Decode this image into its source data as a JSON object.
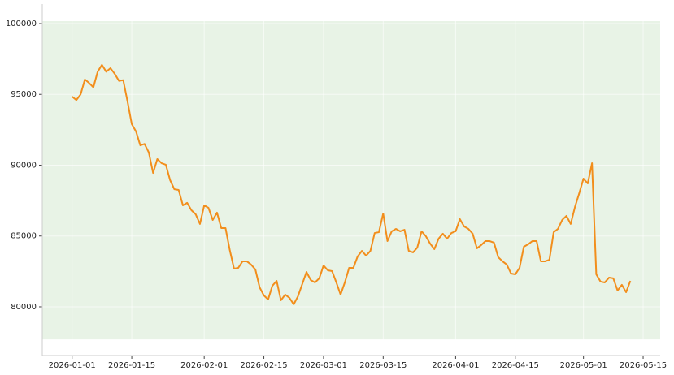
{
  "chart_data": {
    "type": "line",
    "x": [
      "2026-01-01",
      "2026-01-02",
      "2026-01-03",
      "2026-01-04",
      "2026-01-05",
      "2026-01-06",
      "2026-01-07",
      "2026-01-08",
      "2026-01-09",
      "2026-01-10",
      "2026-01-11",
      "2026-01-12",
      "2026-01-13",
      "2026-01-14",
      "2026-01-15",
      "2026-01-16",
      "2026-01-17",
      "2026-01-18",
      "2026-01-19",
      "2026-01-20",
      "2026-01-21",
      "2026-01-22",
      "2026-01-23",
      "2026-01-24",
      "2026-01-25",
      "2026-01-26",
      "2026-01-27",
      "2026-01-28",
      "2026-01-29",
      "2026-01-30",
      "2026-01-31",
      "2026-02-01",
      "2026-02-02",
      "2026-02-03",
      "2026-02-04",
      "2026-02-05",
      "2026-02-06",
      "2026-02-07",
      "2026-02-08",
      "2026-02-09",
      "2026-02-10",
      "2026-02-11",
      "2026-02-12",
      "2026-02-13",
      "2026-02-14",
      "2026-02-15",
      "2026-02-16",
      "2026-02-17",
      "2026-02-18",
      "2026-02-19",
      "2026-02-20",
      "2026-02-21",
      "2026-02-22",
      "2026-02-23",
      "2026-02-24",
      "2026-02-25",
      "2026-02-26",
      "2026-02-27",
      "2026-02-28",
      "2026-03-01",
      "2026-03-02",
      "2026-03-03",
      "2026-03-04",
      "2026-03-05",
      "2026-03-06",
      "2026-03-07",
      "2026-03-08",
      "2026-03-09",
      "2026-03-10",
      "2026-03-11",
      "2026-03-12",
      "2026-03-13",
      "2026-03-14",
      "2026-03-15",
      "2026-03-16",
      "2026-03-17",
      "2026-03-18",
      "2026-03-19",
      "2026-03-20",
      "2026-03-21",
      "2026-03-22",
      "2026-03-23",
      "2026-03-24",
      "2026-03-25",
      "2026-03-26",
      "2026-03-27",
      "2026-03-28",
      "2026-03-29",
      "2026-03-30",
      "2026-03-31",
      "2026-04-01",
      "2026-04-02",
      "2026-04-03",
      "2026-04-04",
      "2026-04-05",
      "2026-04-06",
      "2026-04-07",
      "2026-04-08",
      "2026-04-09",
      "2026-04-10",
      "2026-04-11",
      "2026-04-12",
      "2026-04-13",
      "2026-04-14",
      "2026-04-15",
      "2026-04-16",
      "2026-04-17",
      "2026-04-18",
      "2026-04-19",
      "2026-04-20",
      "2026-04-21",
      "2026-04-22",
      "2026-04-23",
      "2026-04-24",
      "2026-04-25",
      "2026-04-26",
      "2026-04-27",
      "2026-04-28",
      "2026-04-29",
      "2026-04-30",
      "2026-05-01",
      "2026-05-02",
      "2026-05-03",
      "2026-05-04",
      "2026-05-05",
      "2026-05-06",
      "2026-05-07",
      "2026-05-08",
      "2026-05-09",
      "2026-05-10",
      "2026-05-11",
      "2026-05-12"
    ],
    "values": [
      94840,
      94600,
      95000,
      96050,
      95800,
      95500,
      96600,
      97080,
      96600,
      96850,
      96450,
      95950,
      96000,
      94500,
      92900,
      92380,
      91400,
      91500,
      90900,
      89450,
      90430,
      90140,
      90030,
      88940,
      88300,
      88250,
      87160,
      87340,
      86820,
      86530,
      85850,
      87160,
      86990,
      86130,
      86650,
      85560,
      85560,
      84010,
      82690,
      82750,
      83210,
      83210,
      82980,
      82640,
      81380,
      80800,
      80520,
      81490,
      81830,
      80460,
      80860,
      80630,
      80170,
      80740,
      81600,
      82460,
      81890,
      81720,
      82010,
      82920,
      82580,
      82520,
      81720,
      80860,
      81720,
      82750,
      82750,
      83550,
      83950,
      83610,
      83950,
      85210,
      85270,
      86590,
      84640,
      85330,
      85500,
      85330,
      85440,
      83950,
      83840,
      84180,
      85330,
      84990,
      84470,
      84070,
      84810,
      85160,
      84810,
      85210,
      85330,
      86190,
      85670,
      85500,
      85160,
      84130,
      84360,
      84640,
      84640,
      84530,
      83500,
      83210,
      82980,
      82350,
      82290,
      82750,
      84240,
      84410,
      84640,
      84640,
      83210,
      83210,
      83320,
      85270,
      85500,
      86130,
      86420,
      85850,
      87050,
      88020,
      89050,
      88710,
      90140,
      82290,
      81780,
      81720,
      82060,
      82010,
      81150,
      81550,
      81030,
      81830
    ],
    "color": "#f28e1c",
    "xlim": [
      "2025-12-25",
      "2026-05-19"
    ],
    "xticks": [
      "2026-01-01",
      "2026-01-15",
      "2026-02-01",
      "2026-02-15",
      "2026-03-01",
      "2026-03-15",
      "2026-04-01",
      "2026-04-15",
      "2026-05-01",
      "2026-05-15"
    ],
    "ylim": [
      76560,
      101375
    ],
    "yticks": [
      80000,
      85000,
      90000,
      95000,
      100000
    ],
    "grid": true,
    "shaded_region": {
      "ylim": [
        77700,
        100170
      ],
      "color": "#e8f3e6"
    }
  }
}
